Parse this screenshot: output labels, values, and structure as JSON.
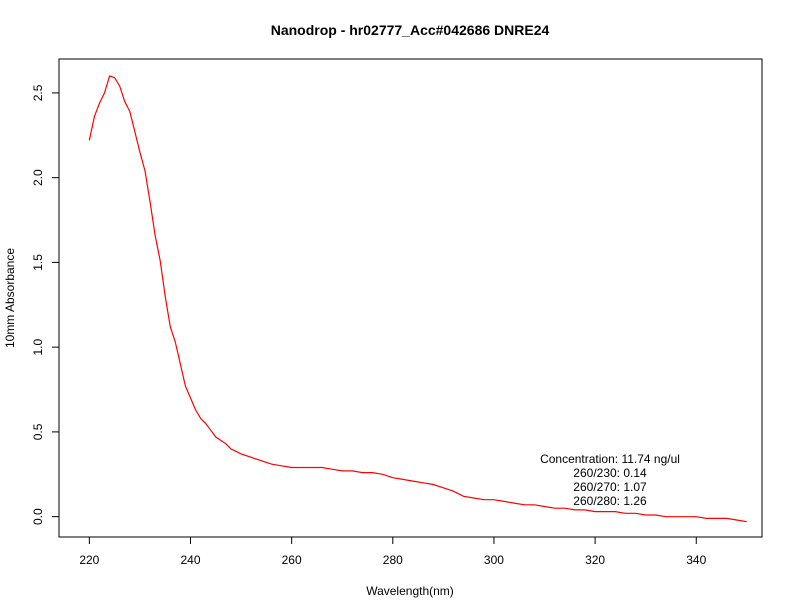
{
  "chart_data": {
    "type": "line",
    "title": "Nanodrop - hr02777_Acc#042686 DNRE24",
    "xlabel": "Wavelength(nm)",
    "ylabel": "10mm Absorbance",
    "xlim": [
      214,
      353
    ],
    "ylim": [
      -0.12,
      2.7
    ],
    "x_ticks": [
      220,
      240,
      260,
      280,
      300,
      320,
      340
    ],
    "y_ticks": [
      0.0,
      0.5,
      1.0,
      1.5,
      2.0,
      2.5
    ],
    "x_tick_labels": [
      "220",
      "240",
      "260",
      "280",
      "300",
      "320",
      "340"
    ],
    "y_tick_labels": [
      "0.0",
      "0.5",
      "1.0",
      "1.5",
      "2.0",
      "2.5"
    ],
    "grid": false,
    "series": [
      {
        "name": "",
        "color": "#ff0000",
        "x": [
          220,
          221,
          222,
          223,
          224,
          225,
          226,
          227,
          228,
          229,
          230,
          231,
          232,
          233,
          234,
          235,
          236,
          237,
          238,
          239,
          240,
          241,
          242,
          243,
          244,
          245,
          246,
          247,
          248,
          250,
          252,
          254,
          256,
          258,
          260,
          262,
          264,
          266,
          268,
          270,
          272,
          274,
          276,
          278,
          280,
          282,
          284,
          286,
          288,
          290,
          292,
          294,
          296,
          298,
          300,
          302,
          304,
          306,
          308,
          310,
          312,
          314,
          316,
          318,
          320,
          322,
          324,
          326,
          328,
          330,
          332,
          334,
          336,
          338,
          340,
          342,
          344,
          346,
          348,
          350
        ],
        "y": [
          2.22,
          2.36,
          2.44,
          2.5,
          2.6,
          2.59,
          2.54,
          2.45,
          2.39,
          2.27,
          2.15,
          2.04,
          1.86,
          1.66,
          1.51,
          1.3,
          1.12,
          1.03,
          0.9,
          0.77,
          0.7,
          0.63,
          0.58,
          0.55,
          0.51,
          0.47,
          0.45,
          0.43,
          0.4,
          0.37,
          0.35,
          0.33,
          0.31,
          0.3,
          0.29,
          0.29,
          0.29,
          0.29,
          0.28,
          0.27,
          0.27,
          0.26,
          0.26,
          0.25,
          0.23,
          0.22,
          0.21,
          0.2,
          0.19,
          0.17,
          0.15,
          0.12,
          0.11,
          0.1,
          0.1,
          0.09,
          0.08,
          0.07,
          0.07,
          0.06,
          0.05,
          0.05,
          0.04,
          0.04,
          0.03,
          0.03,
          0.03,
          0.02,
          0.02,
          0.01,
          0.01,
          0.0,
          0.0,
          0.0,
          0.0,
          -0.01,
          -0.01,
          -0.01,
          -0.02,
          -0.03
        ]
      }
    ],
    "annotations": [
      "Concentration: 11.74 ng/ul",
      "260/230: 0.14",
      "260/270: 1.07",
      "260/280: 1.26"
    ]
  }
}
